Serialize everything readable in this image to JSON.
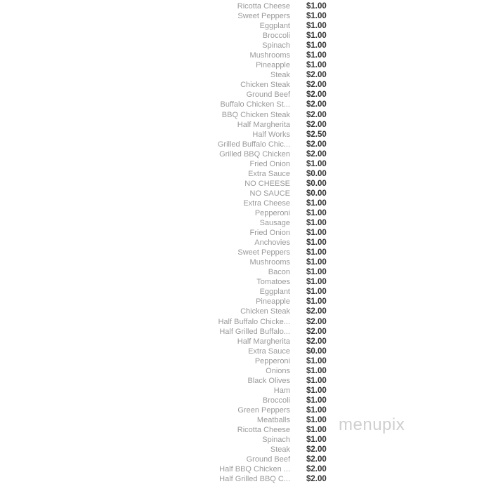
{
  "watermark": "menupix",
  "colors": {
    "name": "#9a9a9a",
    "price": "#333333"
  },
  "items": [
    {
      "name": "Ricotta Cheese",
      "price": "$1.00"
    },
    {
      "name": "Sweet Peppers",
      "price": "$1.00"
    },
    {
      "name": "Eggplant",
      "price": "$1.00"
    },
    {
      "name": "Broccoli",
      "price": "$1.00"
    },
    {
      "name": "Spinach",
      "price": "$1.00"
    },
    {
      "name": "Mushrooms",
      "price": "$1.00"
    },
    {
      "name": "Pineapple",
      "price": "$1.00"
    },
    {
      "name": "Steak",
      "price": "$2.00"
    },
    {
      "name": "Chicken Steak",
      "price": "$2.00"
    },
    {
      "name": "Ground Beef",
      "price": "$2.00"
    },
    {
      "name": "Buffalo Chicken St...",
      "price": "$2.00"
    },
    {
      "name": "BBQ Chicken Steak",
      "price": "$2.00"
    },
    {
      "name": "Half Margherita",
      "price": "$2.00"
    },
    {
      "name": "Half Works",
      "price": "$2.50"
    },
    {
      "name": "Grilled Buffalo Chic...",
      "price": "$2.00"
    },
    {
      "name": "Grilled BBQ Chicken",
      "price": "$2.00"
    },
    {
      "name": "Fried Onion",
      "price": "$1.00"
    },
    {
      "name": "Extra Sauce",
      "price": "$0.00"
    },
    {
      "name": "NO CHEESE",
      "price": "$0.00"
    },
    {
      "name": "NO SAUCE",
      "price": "$0.00"
    },
    {
      "name": "Extra Cheese",
      "price": "$1.00"
    },
    {
      "name": "Pepperoni",
      "price": "$1.00"
    },
    {
      "name": "Sausage",
      "price": "$1.00"
    },
    {
      "name": "Fried Onion",
      "price": "$1.00"
    },
    {
      "name": "Anchovies",
      "price": "$1.00"
    },
    {
      "name": "Sweet Peppers",
      "price": "$1.00"
    },
    {
      "name": "Mushrooms",
      "price": "$1.00"
    },
    {
      "name": "Bacon",
      "price": "$1.00"
    },
    {
      "name": "Tomatoes",
      "price": "$1.00"
    },
    {
      "name": "Eggplant",
      "price": "$1.00"
    },
    {
      "name": "Pineapple",
      "price": "$1.00"
    },
    {
      "name": "Chicken Steak",
      "price": "$2.00"
    },
    {
      "name": "Half Buffalo Chicke...",
      "price": "$2.00"
    },
    {
      "name": "Half Grilled Buffalo...",
      "price": "$2.00"
    },
    {
      "name": "Half Margherita",
      "price": "$2.00"
    },
    {
      "name": "Extra Sauce",
      "price": "$0.00"
    },
    {
      "name": "Pepperoni",
      "price": "$1.00"
    },
    {
      "name": "Onions",
      "price": "$1.00"
    },
    {
      "name": "Black Olives",
      "price": "$1.00"
    },
    {
      "name": "Ham",
      "price": "$1.00"
    },
    {
      "name": "Broccoli",
      "price": "$1.00"
    },
    {
      "name": "Green Peppers",
      "price": "$1.00"
    },
    {
      "name": "Meatballs",
      "price": "$1.00"
    },
    {
      "name": "Ricotta Cheese",
      "price": "$1.00"
    },
    {
      "name": "Spinach",
      "price": "$1.00"
    },
    {
      "name": "Steak",
      "price": "$2.00"
    },
    {
      "name": "Ground Beef",
      "price": "$2.00"
    },
    {
      "name": "Half BBQ Chicken ...",
      "price": "$2.00"
    },
    {
      "name": "Half Grilled BBQ C...",
      "price": "$2.00"
    }
  ]
}
